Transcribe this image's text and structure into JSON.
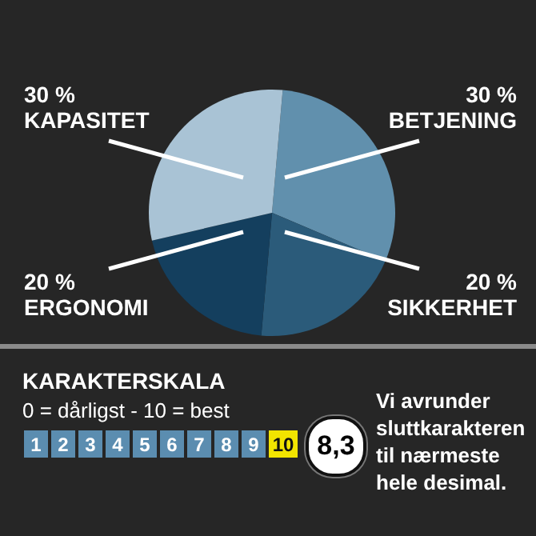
{
  "chart_data": {
    "type": "pie",
    "categories": [
      "BETJENING",
      "SIKKERHET",
      "ERGONOMI",
      "KAPASITET"
    ],
    "values": [
      30,
      20,
      20,
      30
    ],
    "value_labels": [
      "30 %",
      "20 %",
      "20 %",
      "30 %"
    ],
    "colors": [
      "#6190ad",
      "#2b5b7a",
      "#143f5e",
      "#a9c3d5"
    ],
    "annotations": [
      "KARAKTERSKALA",
      "0 = dårligst - 10 = best",
      "1",
      "2",
      "3",
      "4",
      "5",
      "6",
      "7",
      "8",
      "9",
      "10",
      "8,3",
      "Vi avrunder sluttkarakteren til nærmeste hele desimal."
    ]
  }
}
